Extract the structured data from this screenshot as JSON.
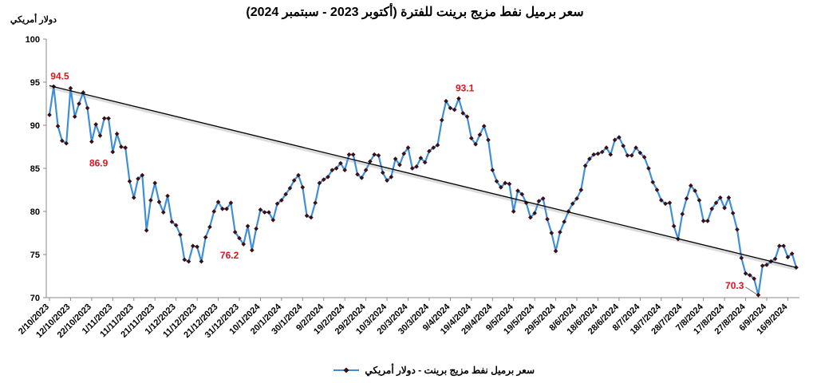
{
  "chart_data": {
    "type": "line",
    "title": "سعر برميل نفط مزيج برينت للفترة (أكتوبر 2023 - سبتمبر 2024)",
    "y_label": "دولار أمريكي",
    "categories": [
      "2/10/2023",
      null,
      null,
      null,
      null,
      "12/10/2023",
      null,
      null,
      null,
      null,
      "22/10/2023",
      null,
      null,
      null,
      null,
      "1/11/2023",
      null,
      null,
      null,
      null,
      "11/11/2023",
      null,
      null,
      null,
      null,
      "21/11/2023",
      null,
      null,
      null,
      null,
      "1/12/2023",
      null,
      null,
      null,
      null,
      "11/12/2023",
      null,
      null,
      null,
      null,
      "21/12/2023",
      null,
      null,
      null,
      null,
      "31/12/2023",
      null,
      null,
      null,
      null,
      "10/1/2024",
      null,
      null,
      null,
      null,
      "20/1/2024",
      null,
      null,
      null,
      null,
      "30/1/2024",
      null,
      null,
      null,
      null,
      "9/2/2024",
      null,
      null,
      null,
      null,
      "19/2/2024",
      null,
      null,
      null,
      null,
      "29/2/2024",
      null,
      null,
      null,
      null,
      "10/3/2024",
      null,
      null,
      null,
      null,
      "20/3/2024",
      null,
      null,
      null,
      null,
      "30/3/2024",
      null,
      null,
      null,
      null,
      "9/4/2024",
      null,
      null,
      null,
      null,
      "19/4/2024",
      null,
      null,
      null,
      null,
      "29/4/2024",
      null,
      null,
      null,
      null,
      "9/5/2024",
      null,
      null,
      null,
      null,
      "19/5/2024",
      null,
      null,
      null,
      null,
      "29/5/2024",
      null,
      null,
      null,
      null,
      "8/6/2024",
      null,
      null,
      null,
      null,
      "18/6/2024",
      null,
      null,
      null,
      null,
      "28/6/2024",
      null,
      null,
      null,
      null,
      "8/7/2024",
      null,
      null,
      null,
      null,
      "18/7/2024",
      null,
      null,
      null,
      null,
      "28/7/2024",
      null,
      null,
      null,
      null,
      "7/8/2024",
      null,
      null,
      null,
      null,
      "17/8/2024",
      null,
      null,
      null,
      null,
      "27/8/2024",
      null,
      null,
      null,
      null,
      "6/9/2024",
      null,
      null,
      null,
      null,
      "16/9/2024",
      null,
      null
    ],
    "series": [
      {
        "name": "سعر برميل نفط مزيج برينت - دولار أمريكي",
        "color": "#3f8fd8",
        "marker_color": "#3b0f14",
        "values": [
          91.2,
          94.5,
          89.9,
          88.2,
          87.9,
          94.3,
          91.0,
          92.5,
          93.8,
          92.0,
          88.1,
          90.1,
          88.8,
          90.8,
          90.8,
          86.9,
          89.0,
          87.5,
          87.4,
          83.5,
          81.6,
          83.8,
          84.2,
          77.8,
          81.3,
          83.3,
          81.1,
          79.9,
          81.8,
          78.8,
          78.4,
          77.3,
          74.4,
          74.2,
          76.0,
          75.9,
          74.2,
          77.0,
          78.2,
          80.0,
          81.1,
          80.3,
          80.3,
          81.0,
          77.6,
          76.9,
          76.2,
          78.3,
          75.5,
          78.0,
          80.2,
          79.9,
          79.9,
          79.0,
          80.9,
          81.3,
          82.0,
          82.7,
          83.6,
          84.2,
          82.8,
          79.5,
          79.3,
          81.0,
          83.3,
          83.7,
          84.0,
          84.8,
          85.0,
          85.6,
          84.8,
          86.6,
          86.6,
          84.3,
          83.9,
          84.8,
          85.8,
          86.6,
          86.5,
          84.5,
          83.6,
          84.0,
          86.1,
          85.4,
          86.7,
          87.4,
          85.0,
          85.2,
          86.2,
          85.7,
          87.0,
          87.4,
          87.7,
          90.6,
          92.8,
          92.0,
          91.8,
          93.1,
          91.4,
          91.0,
          88.5,
          87.8,
          88.9,
          89.9,
          88.3,
          84.8,
          83.5,
          82.8,
          83.3,
          83.2,
          80.0,
          82.4,
          82.0,
          81.0,
          79.3,
          79.8,
          81.2,
          81.5,
          79.1,
          77.5,
          75.4,
          77.6,
          78.8,
          80.0,
          80.9,
          81.5,
          82.5,
          85.3,
          86.1,
          86.6,
          86.7,
          86.9,
          87.4,
          86.6,
          88.3,
          88.6,
          87.6,
          86.5,
          86.5,
          87.4,
          86.8,
          86.3,
          85.0,
          83.4,
          82.5,
          81.3,
          80.9,
          81.0,
          78.3,
          76.8,
          79.7,
          81.5,
          83.0,
          82.4,
          81.3,
          78.9,
          78.9,
          80.3,
          81.0,
          81.6,
          80.4,
          81.6,
          79.8,
          77.9,
          74.6,
          72.8,
          72.6,
          72.2,
          70.3,
          73.7,
          73.8,
          74.2,
          74.5,
          76.0,
          76.0,
          74.7,
          75.1,
          73.5
        ]
      }
    ],
    "labeled_points": [
      1,
      15,
      46,
      97,
      168
    ],
    "trendline": {
      "color": "#000000",
      "from": 94.6,
      "to": 73.5
    },
    "ylim": [
      70,
      100
    ],
    "yticks": [
      70,
      75,
      80,
      85,
      90,
      95,
      100
    ],
    "grid": false
  }
}
